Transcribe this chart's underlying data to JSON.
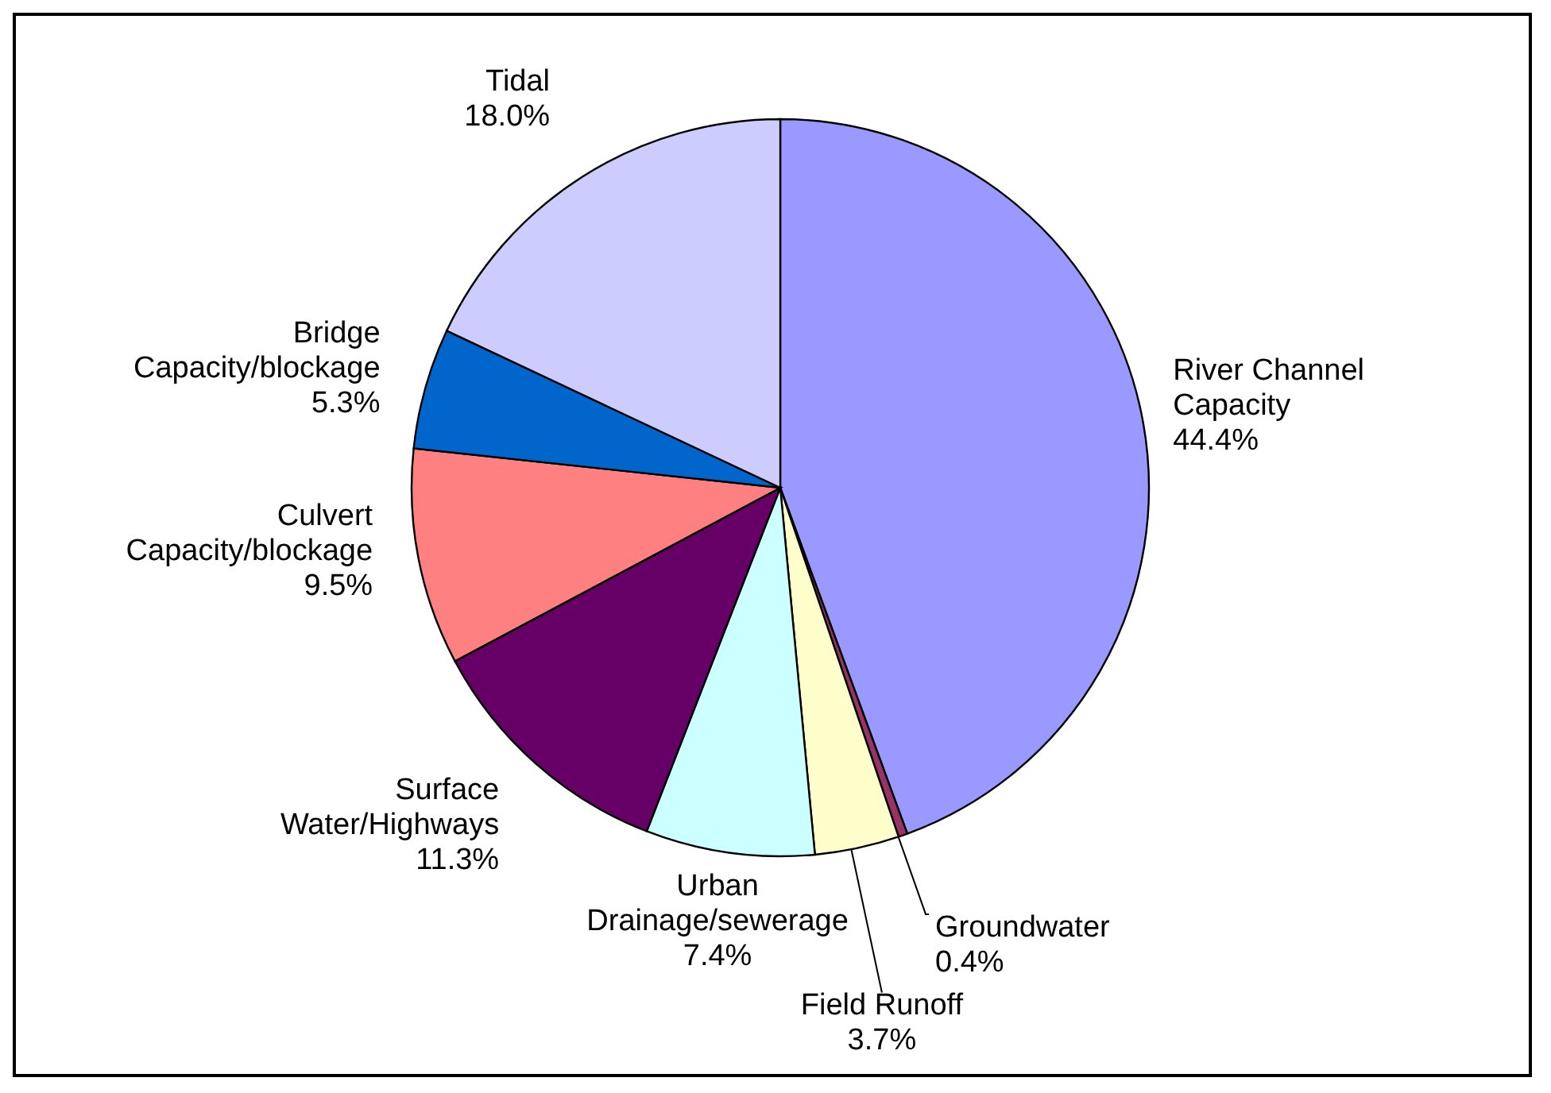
{
  "chart_data": {
    "type": "pie",
    "categories": [
      "River Channel Capacity",
      "Groundwater",
      "Field Runoff",
      "Urban Drainage/sewerage",
      "Surface Water/Highways",
      "Culvert Capacity/blockage",
      "Bridge Capacity/blockage",
      "Tidal"
    ],
    "values": [
      44.4,
      0.4,
      3.7,
      7.4,
      11.3,
      9.5,
      5.3,
      18.0
    ],
    "value_labels": [
      "44.4%",
      "0.4%",
      "3.7%",
      "7.4%",
      "11.3%",
      "9.5%",
      "5.3%",
      "18.0%"
    ],
    "colors": [
      "#9999ff",
      "#993366",
      "#ffffcc",
      "#ccffff",
      "#660066",
      "#ff8080",
      "#0066cc",
      "#ccccff"
    ],
    "legend": false
  }
}
